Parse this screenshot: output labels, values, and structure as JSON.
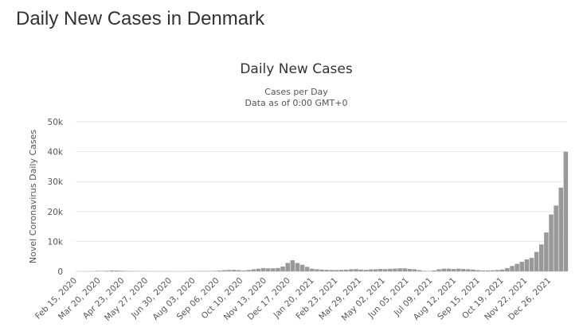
{
  "page": {
    "title": "Daily New Cases in Denmark"
  },
  "chart_data": {
    "type": "bar",
    "title": "Daily New Cases",
    "subtitle": [
      "Cases per Day",
      "Data as of 0:00 GMT+0"
    ],
    "xlabel": "",
    "ylabel": "Novel Coronavirus Daily Cases",
    "ylim": [
      0,
      50000
    ],
    "yticks": [
      0,
      10000,
      20000,
      30000,
      40000,
      50000
    ],
    "ytick_labels": [
      "0",
      "10k",
      "20k",
      "30k",
      "40k",
      "50k"
    ],
    "xlim": [
      "2020-02-15",
      "2022-01-20"
    ],
    "xtick_labels": [
      "Feb 15, 2020",
      "Mar 20, 2020",
      "Apr 23, 2020",
      "May 27, 2020",
      "Jun 30, 2020",
      "Aug 03, 2020",
      "Sep 06, 2020",
      "Oct 10, 2020",
      "Nov 13, 2020",
      "Dec 17, 2020",
      "Jan 20, 2021",
      "Feb 23, 2021",
      "Mar 29, 2021",
      "May 02, 2021",
      "Jun 05, 2021",
      "Jul 09, 2021",
      "Aug 12, 2021",
      "Sep 15, 2021",
      "Oct 19, 2021",
      "Nov 22, 2021",
      "Dec 26, 2021"
    ],
    "grid": true,
    "legend": "none",
    "bar_color": "#999999",
    "points": [
      [
        "2020-02-15",
        0
      ],
      [
        "2020-02-22",
        0
      ],
      [
        "2020-02-29",
        5
      ],
      [
        "2020-03-07",
        40
      ],
      [
        "2020-03-14",
        150
      ],
      [
        "2020-03-21",
        120
      ],
      [
        "2020-03-28",
        200
      ],
      [
        "2020-04-04",
        300
      ],
      [
        "2020-04-11",
        250
      ],
      [
        "2020-04-18",
        200
      ],
      [
        "2020-04-25",
        150
      ],
      [
        "2020-05-02",
        120
      ],
      [
        "2020-05-09",
        100
      ],
      [
        "2020-05-16",
        80
      ],
      [
        "2020-05-23",
        50
      ],
      [
        "2020-05-30",
        40
      ],
      [
        "2020-06-06",
        40
      ],
      [
        "2020-06-13",
        30
      ],
      [
        "2020-06-20",
        40
      ],
      [
        "2020-06-27",
        30
      ],
      [
        "2020-07-04",
        20
      ],
      [
        "2020-07-11",
        20
      ],
      [
        "2020-07-18",
        30
      ],
      [
        "2020-07-25",
        50
      ],
      [
        "2020-08-01",
        80
      ],
      [
        "2020-08-08",
        100
      ],
      [
        "2020-08-15",
        120
      ],
      [
        "2020-08-22",
        100
      ],
      [
        "2020-08-29",
        150
      ],
      [
        "2020-09-05",
        250
      ],
      [
        "2020-09-12",
        400
      ],
      [
        "2020-09-19",
        450
      ],
      [
        "2020-09-26",
        500
      ],
      [
        "2020-10-03",
        400
      ],
      [
        "2020-10-10",
        300
      ],
      [
        "2020-10-17",
        450
      ],
      [
        "2020-10-24",
        700
      ],
      [
        "2020-10-31",
        900
      ],
      [
        "2020-11-07",
        1100
      ],
      [
        "2020-11-14",
        1000
      ],
      [
        "2020-11-21",
        1000
      ],
      [
        "2020-11-28",
        1100
      ],
      [
        "2020-12-05",
        1600
      ],
      [
        "2020-12-12",
        2800
      ],
      [
        "2020-12-19",
        3700
      ],
      [
        "2020-12-26",
        2800
      ],
      [
        "2021-01-02",
        2200
      ],
      [
        "2021-01-09",
        1500
      ],
      [
        "2021-01-16",
        900
      ],
      [
        "2021-01-23",
        700
      ],
      [
        "2021-01-30",
        600
      ],
      [
        "2021-02-06",
        500
      ],
      [
        "2021-02-13",
        450
      ],
      [
        "2021-02-20",
        450
      ],
      [
        "2021-02-27",
        500
      ],
      [
        "2021-03-06",
        550
      ],
      [
        "2021-03-13",
        700
      ],
      [
        "2021-03-20",
        750
      ],
      [
        "2021-03-27",
        600
      ],
      [
        "2021-04-03",
        500
      ],
      [
        "2021-04-10",
        650
      ],
      [
        "2021-04-17",
        700
      ],
      [
        "2021-04-24",
        800
      ],
      [
        "2021-05-01",
        750
      ],
      [
        "2021-05-08",
        850
      ],
      [
        "2021-05-15",
        900
      ],
      [
        "2021-05-22",
        1000
      ],
      [
        "2021-05-29",
        1000
      ],
      [
        "2021-06-05",
        800
      ],
      [
        "2021-06-12",
        700
      ],
      [
        "2021-06-19",
        400
      ],
      [
        "2021-06-26",
        150
      ],
      [
        "2021-07-03",
        100
      ],
      [
        "2021-07-10",
        300
      ],
      [
        "2021-07-17",
        700
      ],
      [
        "2021-07-24",
        900
      ],
      [
        "2021-07-31",
        900
      ],
      [
        "2021-08-07",
        800
      ],
      [
        "2021-08-14",
        900
      ],
      [
        "2021-08-21",
        800
      ],
      [
        "2021-08-28",
        700
      ],
      [
        "2021-09-04",
        600
      ],
      [
        "2021-09-11",
        400
      ],
      [
        "2021-09-18",
        300
      ],
      [
        "2021-09-25",
        300
      ],
      [
        "2021-10-02",
        350
      ],
      [
        "2021-10-09",
        450
      ],
      [
        "2021-10-16",
        600
      ],
      [
        "2021-10-23",
        1100
      ],
      [
        "2021-10-30",
        1800
      ],
      [
        "2021-11-06",
        2500
      ],
      [
        "2021-11-13",
        3200
      ],
      [
        "2021-11-20",
        4000
      ],
      [
        "2021-11-27",
        4500
      ],
      [
        "2021-12-04",
        6500
      ],
      [
        "2021-12-11",
        9000
      ],
      [
        "2021-12-18",
        13000
      ],
      [
        "2021-12-25",
        19000
      ],
      [
        "2022-01-01",
        22000
      ],
      [
        "2022-01-08",
        28000
      ],
      [
        "2022-01-15",
        40000
      ]
    ]
  }
}
